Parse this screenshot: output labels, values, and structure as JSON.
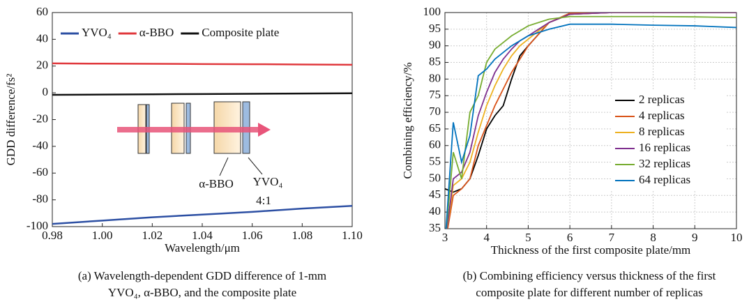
{
  "chart_data": [
    {
      "type": "line",
      "y_label": "GDD difference/fs²",
      "x_label": "Wavelength/μm",
      "caption": [
        "(a) Wavelength-dependent GDD difference of 1-mm",
        "YVO₄, α-BBO, and the composite plate"
      ],
      "annotations": [
        "α-BBO",
        "YVO₄",
        "4:1"
      ],
      "x": [
        0.98,
        1.0,
        1.02,
        1.04,
        1.06,
        1.08,
        1.1
      ],
      "series": [
        {
          "name": "YVO₄",
          "color": "#2c4fa3",
          "values": [
            -98,
            -95.5,
            -93,
            -91,
            -89,
            -86.5,
            -84.5
          ]
        },
        {
          "name": "α-BBO",
          "color": "#e0383c",
          "values": [
            22,
            21.8,
            21.7,
            21.5,
            21.4,
            21.2,
            21
          ]
        },
        {
          "name": "Composite plate",
          "color": "#111111",
          "values": [
            -1.5,
            -1.3,
            -1.1,
            -0.9,
            -0.7,
            -0.5,
            -0.3
          ]
        }
      ],
      "xlim": [
        0.98,
        1.1
      ],
      "ylim": [
        -100,
        60
      ],
      "xticks": [
        0.98,
        {
          "value": 1.0,
          "label": "1.00"
        },
        1.02,
        1.04,
        1.06,
        1.08,
        {
          "value": 1.1,
          "label": "1.10"
        }
      ],
      "yticks": [
        -100,
        -80,
        -60,
        -40,
        -20,
        0,
        20,
        40,
        60
      ],
      "grid": false,
      "legend": "top"
    },
    {
      "type": "line",
      "y_label": "Combining efficiency/%",
      "x_label": "Thickness of the first composite plate/mm",
      "caption": [
        "(b) Combining efficiency versus thickness of the first",
        "composite plate for different number of replicas"
      ],
      "x": [
        3.0,
        3.2,
        3.4,
        3.6,
        3.8,
        4.0,
        4.2,
        4.4,
        4.6,
        4.8,
        5.0,
        5.5,
        6,
        7,
        8,
        9,
        10
      ],
      "series": [
        {
          "name": "2 replicas",
          "color": "#000000",
          "values": [
            47,
            46,
            47,
            50,
            57,
            65,
            69,
            72,
            80,
            87,
            90,
            97,
            99.5,
            100,
            100,
            100,
            100
          ]
        },
        {
          "name": "4 replicas",
          "color": "#d95319",
          "values": [
            30,
            45,
            47,
            50,
            60,
            66,
            72,
            77,
            82,
            86,
            90,
            97,
            99.8,
            100,
            100,
            100,
            100
          ]
        },
        {
          "name": "8 replicas",
          "color": "#edb120",
          "values": [
            30,
            48,
            50,
            55,
            64,
            72,
            78,
            83,
            87,
            90,
            92,
            97,
            99.5,
            100,
            100,
            100,
            100
          ]
        },
        {
          "name": "16 replicas",
          "color": "#7e2f8e",
          "values": [
            30,
            50,
            52,
            58,
            69,
            76,
            82,
            86,
            89,
            91.5,
            93,
            97,
            99.5,
            100,
            100,
            100,
            100
          ]
        },
        {
          "name": "32 replicas",
          "color": "#77ac30",
          "values": [
            30,
            58,
            50,
            70,
            75,
            85,
            89,
            91,
            93,
            94.5,
            96,
            98,
            98.8,
            98.8,
            98.8,
            98.7,
            98.5
          ]
        },
        {
          "name": "64 replicas",
          "color": "#0072bd",
          "values": [
            30,
            67,
            55,
            63,
            81,
            83,
            86,
            88,
            90,
            91.5,
            93,
            95,
            96.5,
            96.5,
            96.2,
            96,
            95.5
          ]
        }
      ],
      "xlim": [
        3,
        10
      ],
      "ylim": [
        35,
        100
      ],
      "xticks": [
        3,
        4,
        5,
        6,
        7,
        8,
        9,
        10
      ],
      "yticks": [
        35,
        40,
        45,
        50,
        55,
        60,
        65,
        70,
        75,
        80,
        85,
        90,
        95,
        100
      ],
      "grid": true,
      "legend": "center right"
    }
  ]
}
